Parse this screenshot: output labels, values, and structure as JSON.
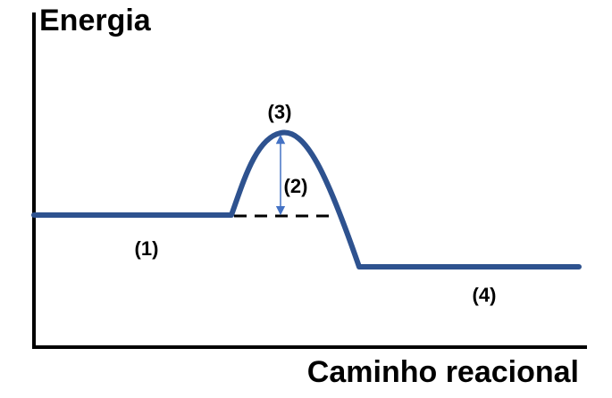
{
  "axes": {
    "y_title": "Energia",
    "x_title": "Caminho reacional"
  },
  "labels": {
    "reactants": "(1)",
    "activation_energy": "(2)",
    "transition_state": "(3)",
    "products": "(4)"
  },
  "colors": {
    "curve": "#2e528f",
    "arrow": "#4472c4",
    "axes": "#000000",
    "dashed_line": "#000000"
  }
}
